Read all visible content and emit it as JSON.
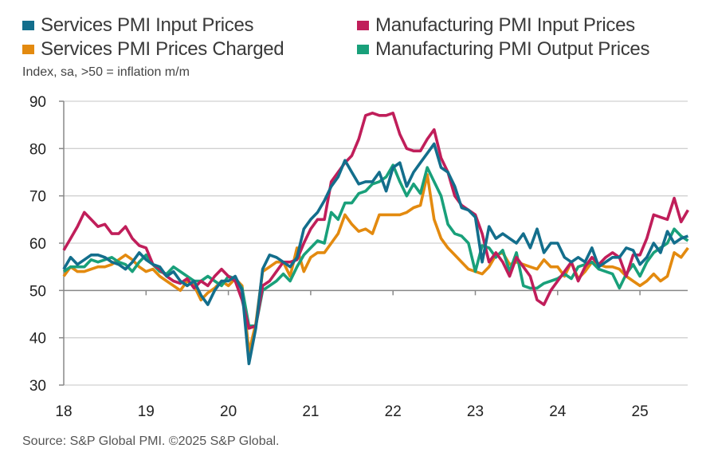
{
  "chart_data": {
    "type": "line",
    "subtitle": "Index, sa, >50 = inflation m/m",
    "source": "Source: S&P Global PMI. ©2025 S&P Global.",
    "ylim": [
      30,
      90
    ],
    "yticks": [
      "30",
      "40",
      "50",
      "60",
      "70",
      "80",
      "90"
    ],
    "xticks": [
      "18",
      "19",
      "20",
      "21",
      "22",
      "23",
      "24",
      "25"
    ],
    "x_start": "Jan 2018",
    "x_end": "Aug 2025",
    "frequency": "monthly",
    "legend_placement": "top",
    "series": [
      {
        "name": "Services PMI Input Prices",
        "color": "#136e8c",
        "values": [
          54.5,
          57,
          55.5,
          56.5,
          57.5,
          57.5,
          57,
          56,
          55.5,
          54.5,
          56,
          58,
          56.5,
          55.5,
          55,
          53,
          54,
          52,
          51,
          52,
          49,
          47,
          50,
          52,
          52,
          53,
          50,
          34.5,
          42,
          54.5,
          57.5,
          57,
          56,
          55,
          57,
          63,
          65,
          66.5,
          69,
          72,
          74,
          77.5,
          75,
          72.5,
          73,
          73,
          75,
          71,
          76,
          77,
          72,
          75,
          77,
          79,
          81,
          76,
          75,
          72,
          67.5,
          67,
          65.5,
          56,
          63.5,
          61,
          62,
          61,
          60,
          62,
          59,
          63,
          58,
          60,
          60,
          57,
          56,
          57,
          56,
          59,
          55,
          56,
          57,
          57,
          59,
          58.5,
          55.5,
          57,
          60,
          58,
          62.5,
          60,
          61,
          61.5
        ]
      },
      {
        "name": "Manufacturing PMI Input Prices",
        "color": "#c01e5a",
        "values": [
          58.5,
          61,
          63.5,
          66.5,
          65,
          63.5,
          64,
          62,
          62,
          63.5,
          61,
          59.5,
          59,
          55.5,
          54.5,
          53,
          52,
          51.5,
          52.5,
          50.5,
          52,
          51,
          53,
          54.5,
          53,
          52,
          48,
          42,
          42.5,
          51,
          52,
          54,
          56,
          56,
          56.5,
          60,
          63,
          65,
          65,
          73,
          75,
          77,
          78.5,
          82,
          87,
          87.5,
          87,
          87,
          87.5,
          83,
          80,
          79.5,
          79.5,
          82,
          84,
          78,
          75,
          70,
          68,
          67,
          66,
          62,
          56,
          58,
          56,
          53,
          57,
          55,
          53,
          48,
          47,
          50,
          52,
          54,
          56,
          52,
          55,
          57,
          55.5,
          57,
          58,
          57,
          53,
          57.5,
          57.5,
          61,
          66,
          65.5,
          65,
          69.5,
          64.5,
          67
        ]
      },
      {
        "name": "Services PMI Prices Charged",
        "color": "#e38a0f",
        "values": [
          53,
          55,
          54,
          54,
          54.5,
          55,
          55,
          55.5,
          56.5,
          57.5,
          56.5,
          55,
          54,
          54.5,
          53,
          52,
          51,
          50,
          52,
          51,
          48,
          49.5,
          50.5,
          52,
          51,
          52.5,
          51,
          37,
          43,
          54,
          55,
          56,
          56,
          53,
          59,
          54,
          57,
          58,
          58,
          60,
          62,
          66,
          64,
          62.5,
          63,
          62,
          66,
          66,
          66,
          66,
          66.5,
          67.5,
          68,
          74.5,
          65,
          61,
          59,
          57.5,
          56,
          54.5,
          54,
          53.5,
          55,
          57.5,
          58,
          55.5,
          56,
          55.5,
          55,
          54.5,
          56.5,
          55,
          55,
          53,
          56,
          52.5,
          54,
          56,
          55.5,
          55,
          55,
          54.5,
          53,
          52,
          51,
          52,
          53.5,
          52,
          53,
          58,
          57,
          59
        ]
      },
      {
        "name": "Manufacturing PMI Output Prices",
        "color": "#19a07a",
        "values": [
          54,
          55,
          55,
          55,
          56.5,
          56,
          56.5,
          57,
          56,
          55.5,
          54,
          56,
          57.5,
          55.5,
          54,
          53.5,
          55,
          54,
          53,
          52,
          52,
          53,
          52,
          51,
          53,
          52.5,
          50.5,
          42.5,
          42.5,
          50,
          51,
          52,
          53.5,
          52,
          55,
          57.5,
          59,
          60.5,
          60,
          66.5,
          65,
          68.5,
          68.5,
          70.5,
          71,
          72.5,
          73,
          74,
          76.5,
          73,
          70,
          72.5,
          70.5,
          76,
          73,
          70,
          64,
          62,
          61.5,
          60,
          54,
          59.5,
          59,
          57,
          58.5,
          54,
          58,
          51,
          50.5,
          50.5,
          51.5,
          52,
          52.5,
          53.5,
          52.5,
          55,
          55.5,
          56,
          54.5,
          54,
          53.5,
          50.5,
          53.5,
          55.5,
          53,
          56,
          58,
          59,
          60,
          63,
          61.5,
          60.5
        ]
      }
    ]
  }
}
